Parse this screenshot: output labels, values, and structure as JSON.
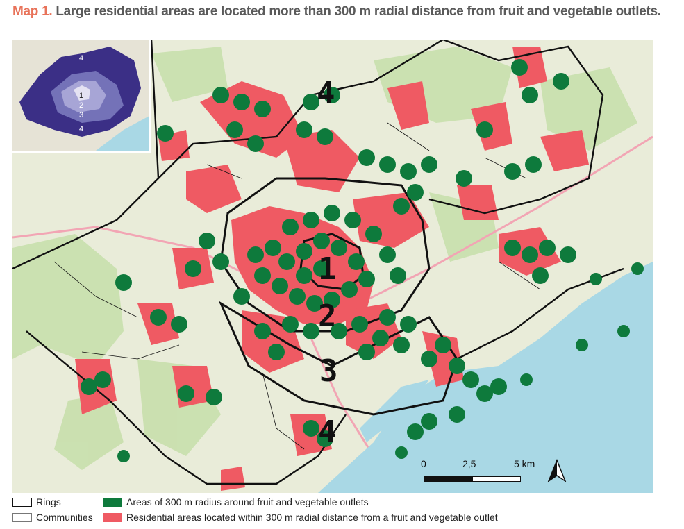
{
  "title": {
    "lead": "Map 1.",
    "text": "Large residential areas are located more than 300 m radial distance from fruit and vegetable outlets."
  },
  "inset": {
    "ring_labels": [
      "1",
      "2",
      "3",
      "4",
      "4"
    ]
  },
  "map": {
    "ring_labels": [
      "1",
      "2",
      "3",
      "4",
      "4"
    ],
    "colors": {
      "outlet_buffer": "#0e7a3c",
      "residential": "#ef5a63",
      "sea": "#a9d8e5",
      "land": "#e9ecd9",
      "forest": "#c6dfa9",
      "ring_border": "#111111"
    }
  },
  "scale": {
    "labels": [
      "0",
      "2,5",
      "5 km"
    ]
  },
  "north_arrow": {
    "icon": "north-arrow-icon"
  },
  "legend": {
    "rings": "Rings",
    "communities": "Communities",
    "buffer": "Areas of 300 m radius around fruit and vegetable outlets",
    "residential": "Residential areas located within 300 m radial distance from a fruit and vegetable outlet"
  }
}
